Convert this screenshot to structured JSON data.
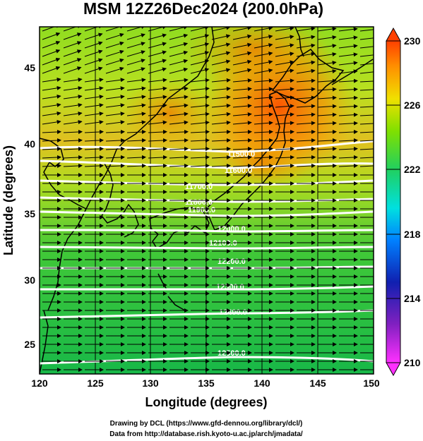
{
  "title": "MSM 12Z26Dec2024 (200.0hPa)",
  "x_axis": {
    "label": "Longitude (degrees)",
    "ticks": [
      "120",
      "125",
      "130",
      "135",
      "140",
      "145",
      "150"
    ]
  },
  "y_axis": {
    "label": "Latitude  (degrees)",
    "ticks": [
      "25",
      "30",
      "35",
      "40",
      "45"
    ]
  },
  "colorbar": {
    "ticks": [
      "210",
      "214",
      "218",
      "222",
      "226",
      "230"
    ],
    "stops": [
      "#ff30ff",
      "#1020b0",
      "#00c8ff",
      "#20d060",
      "#f0e000",
      "#ff4000"
    ]
  },
  "contour_labels": [
    "11500.0",
    "11600.0",
    "11700.0",
    "11800.0",
    "11900.0",
    "12000.0",
    "12100.0",
    "12200.0",
    "12300.0",
    "12400.0",
    "12500.0"
  ],
  "credits": {
    "line1": "Drawing by DCL (https://www.gfd-dennou.org/library/dcl/)",
    "line2": "Data from http://database.rish.kyoto-u.ac.jp/arch/jmadata/"
  },
  "colors": {
    "field_low": "#20c040",
    "field_mid": "#b8e020",
    "field_high": "#ff7000",
    "contour": "#ffffff",
    "wind": "#000000"
  }
}
